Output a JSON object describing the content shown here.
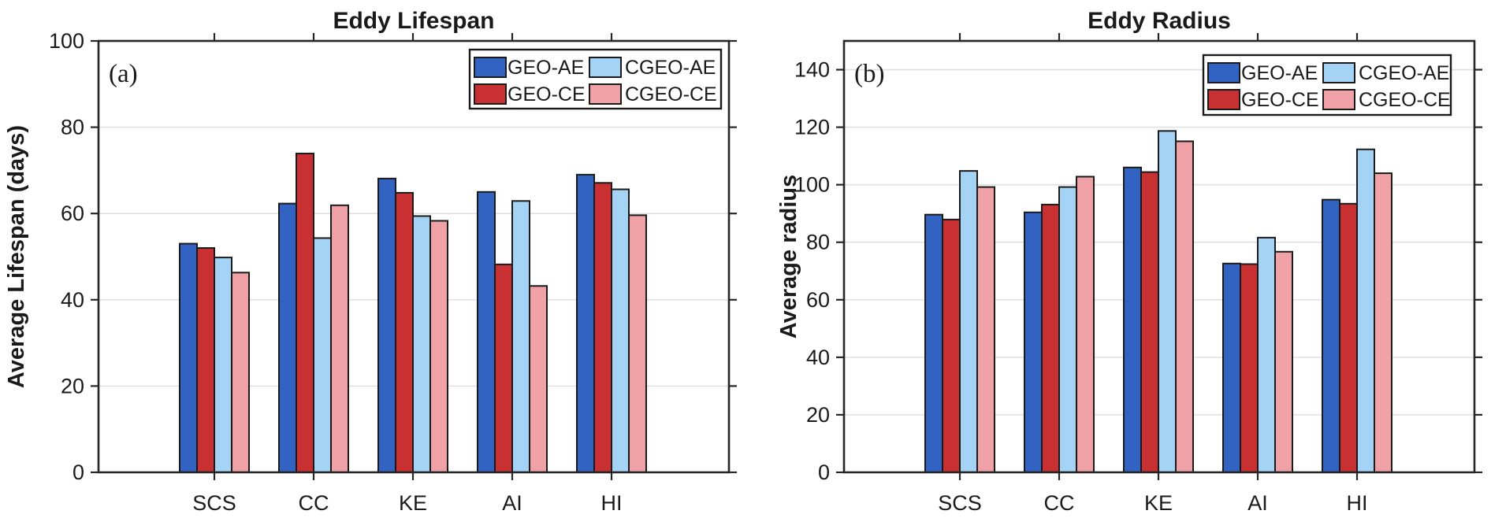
{
  "figure": {
    "background": "#FFFFFF"
  },
  "styles": {
    "axis_color": "#262626",
    "text_color": "#1A1A1A",
    "grid_color": "#E0E0E0",
    "bar_edge_color": "#1A1A1A",
    "legend_background": "#FFFFFF",
    "legend_border": "#1A1A1A"
  },
  "chart_data": [
    {
      "id": "a",
      "type": "bar",
      "panel_label": "(a)",
      "title": "Eddy Lifespan",
      "xlabel": "",
      "ylabel": "Average Lifespan (days)",
      "categories": [
        "SCS",
        "CC",
        "KE",
        "AI",
        "HI"
      ],
      "series": [
        {
          "name": "GEO-AE",
          "color": "#3263C3",
          "values": [
            53.0,
            62.3,
            68.1,
            65.0,
            69.0
          ]
        },
        {
          "name": "GEO-CE",
          "color": "#C93031",
          "values": [
            52.0,
            73.9,
            64.8,
            48.2,
            67.1
          ]
        },
        {
          "name": "CGEO-AE",
          "color": "#A5D3F5",
          "values": [
            49.8,
            54.3,
            59.4,
            62.9,
            65.6
          ]
        },
        {
          "name": "CGEO-CE",
          "color": "#EFA1A6",
          "values": [
            46.3,
            61.9,
            58.3,
            43.2,
            59.6
          ]
        }
      ],
      "ylim": [
        0,
        100
      ],
      "yticks": [
        0,
        20,
        40,
        60,
        80,
        100
      ],
      "grid": true,
      "legend_position": "top-right",
      "legend_columns": [
        [
          "GEO-AE",
          "GEO-CE"
        ],
        [
          "CGEO-AE",
          "CGEO-CE"
        ]
      ]
    },
    {
      "id": "b",
      "type": "bar",
      "panel_label": "(b)",
      "title": "Eddy Radius",
      "xlabel": "",
      "ylabel": "Average radius",
      "categories": [
        "SCS",
        "CC",
        "KE",
        "AI",
        "HI"
      ],
      "series": [
        {
          "name": "GEO-AE",
          "color": "#3263C3",
          "values": [
            89.6,
            90.4,
            106.0,
            72.6,
            94.8
          ]
        },
        {
          "name": "GEO-CE",
          "color": "#C93031",
          "values": [
            87.9,
            93.1,
            104.4,
            72.4,
            93.4
          ]
        },
        {
          "name": "CGEO-AE",
          "color": "#A5D3F5",
          "values": [
            104.8,
            99.2,
            118.7,
            81.6,
            112.3
          ]
        },
        {
          "name": "CGEO-CE",
          "color": "#EFA1A6",
          "values": [
            99.2,
            102.8,
            115.1,
            76.7,
            104.0
          ]
        }
      ],
      "ylim": [
        0,
        150
      ],
      "yticks": [
        0,
        20,
        40,
        60,
        80,
        100,
        120,
        140
      ],
      "grid": true,
      "legend_position": "top-right",
      "legend_columns": [
        [
          "GEO-AE",
          "GEO-CE"
        ],
        [
          "CGEO-AE",
          "CGEO-CE"
        ]
      ]
    }
  ]
}
